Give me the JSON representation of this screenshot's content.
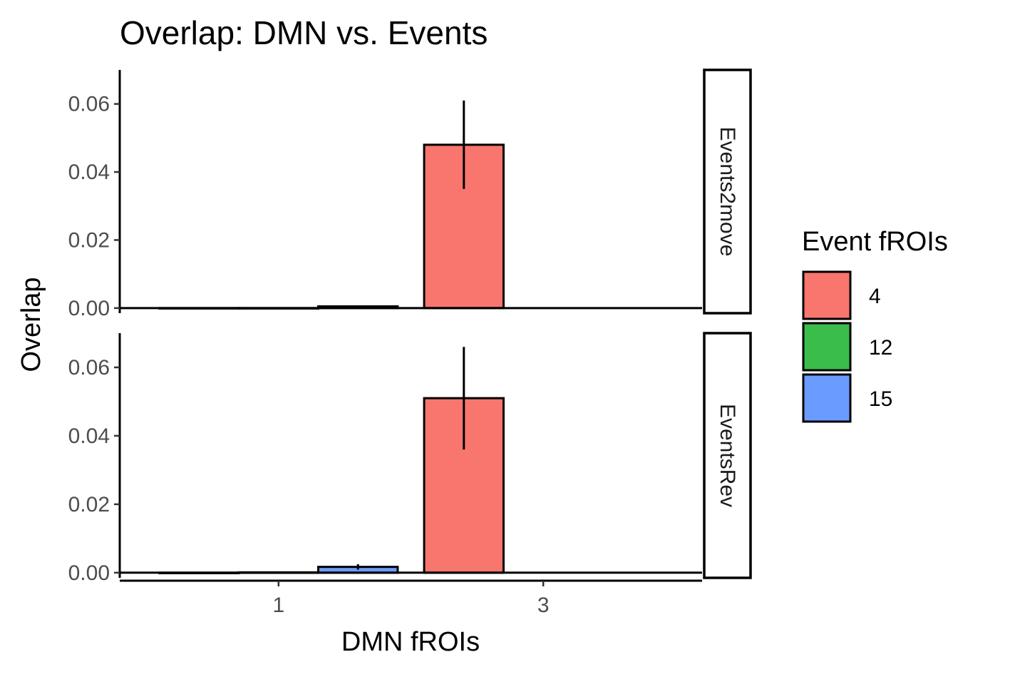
{
  "chart_data": {
    "type": "bar",
    "title": "Overlap: DMN vs. Events",
    "xlabel": "DMN fROIs",
    "ylabel": "Overlap",
    "categories": [
      "1",
      "3"
    ],
    "ylim": [
      -0.0015,
      0.07
    ],
    "yticks": [
      0.0,
      0.02,
      0.04,
      0.06
    ],
    "ytick_labels": [
      "0.00",
      "0.02",
      "0.04",
      "0.06"
    ],
    "grid": false,
    "legend": {
      "title": "Event fROIs",
      "placement": "right",
      "entries": [
        {
          "label": "4",
          "color": "#F8766D"
        },
        {
          "label": "12",
          "color": "#3BBD4B"
        },
        {
          "label": "15",
          "color": "#6A9CFF"
        }
      ]
    },
    "series_labels": [
      "4",
      "12",
      "15"
    ],
    "series_colors": [
      "#F8766D",
      "#3BBD4B",
      "#6A9CFF"
    ],
    "panels": [
      {
        "strip": "Events2move",
        "bars": [
          {
            "category": "1",
            "series": "4",
            "value": 0.0,
            "error": 0.0
          },
          {
            "category": "1",
            "series": "12",
            "value": 0.0,
            "error": 0.0
          },
          {
            "category": "1",
            "series": "15",
            "value": 0.0005,
            "error": 0.0001
          },
          {
            "category": "3",
            "series": "4",
            "value": 0.048,
            "error": 0.013
          }
        ]
      },
      {
        "strip": "EventsRev",
        "bars": [
          {
            "category": "1",
            "series": "4",
            "value": 0.0,
            "error": 0.0
          },
          {
            "category": "1",
            "series": "12",
            "value": 0.0001,
            "error": 0.0
          },
          {
            "category": "1",
            "series": "15",
            "value": 0.0017,
            "error": 0.0008
          },
          {
            "category": "3",
            "series": "4",
            "value": 0.051,
            "error": 0.015
          }
        ]
      }
    ]
  }
}
